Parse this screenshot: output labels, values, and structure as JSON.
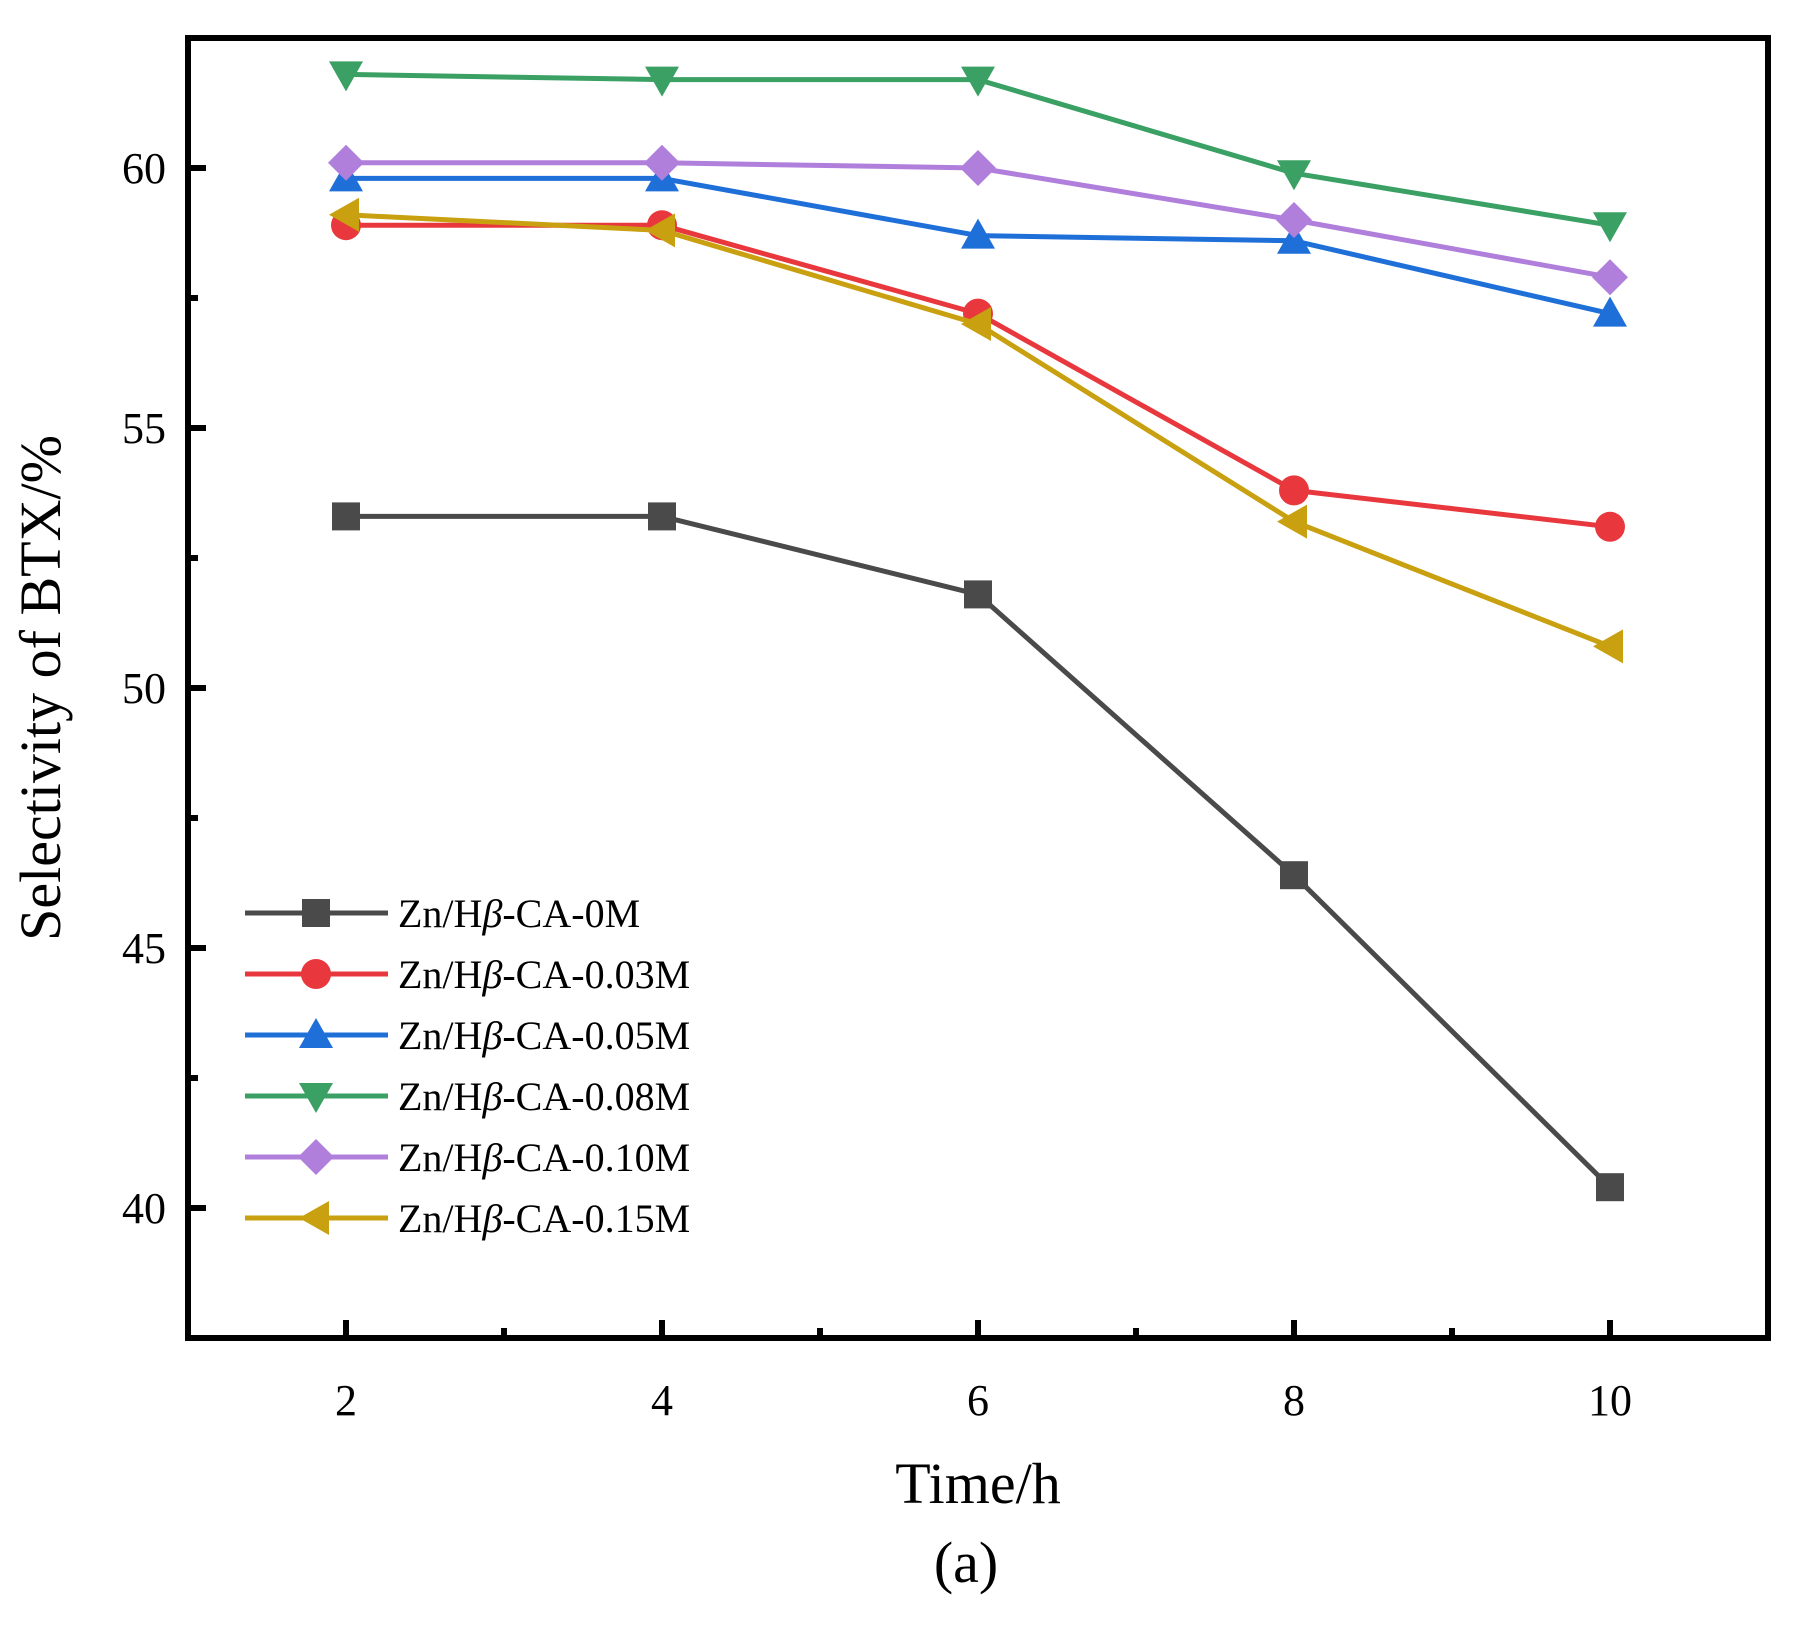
{
  "chart_data": {
    "type": "line",
    "title": "",
    "xlabel": "Time/h",
    "ylabel": "Selectivity of BTX/%",
    "caption": "(a)",
    "x": [
      2,
      4,
      6,
      8,
      10
    ],
    "xlim": [
      1,
      11
    ],
    "ylim": [
      37.5,
      62.5
    ],
    "xticks": [
      2,
      4,
      6,
      8,
      10
    ],
    "yticks": [
      40,
      45,
      50,
      55,
      60
    ],
    "grid": false,
    "legend_position": "lower-left",
    "series": [
      {
        "name": "Zn/Hβ-CA-0M",
        "label_prefix": "Zn/H",
        "label_symbol": "β",
        "label_suffix": "-CA-0M",
        "color": "#4a4a4a",
        "marker": "square",
        "values": [
          53.3,
          53.3,
          51.8,
          46.4,
          40.4
        ]
      },
      {
        "name": "Zn/Hβ-CA-0.03M",
        "label_prefix": "Zn/H",
        "label_symbol": "β",
        "label_suffix": "-CA-0.03M",
        "color": "#e8383d",
        "marker": "circle",
        "values": [
          58.9,
          58.9,
          57.2,
          53.8,
          53.1
        ]
      },
      {
        "name": "Zn/Hβ-CA-0.05M",
        "label_prefix": "Zn/H",
        "label_symbol": "β",
        "label_suffix": "-CA-0.05M",
        "color": "#1f6fd8",
        "marker": "triangle-up",
        "values": [
          59.8,
          59.8,
          58.7,
          58.6,
          57.2
        ]
      },
      {
        "name": "Zn/Hβ-CA-0.08M",
        "label_prefix": "Zn/H",
        "label_symbol": "β",
        "label_suffix": "-CA-0.08M",
        "color": "#3aa064",
        "marker": "triangle-down",
        "values": [
          61.8,
          61.7,
          61.7,
          59.9,
          58.9
        ]
      },
      {
        "name": "Zn/Hβ-CA-0.10M",
        "label_prefix": "Zn/H",
        "label_symbol": "β",
        "label_suffix": "-CA-0.10M",
        "color": "#b07fdc",
        "marker": "diamond",
        "values": [
          60.1,
          60.1,
          60.0,
          59.0,
          57.9
        ]
      },
      {
        "name": "Zn/Hβ-CA-0.15M",
        "label_prefix": "Zn/H",
        "label_symbol": "β",
        "label_suffix": "-CA-0.15M",
        "color": "#c9a00f",
        "marker": "triangle-left",
        "values": [
          59.1,
          58.8,
          57.0,
          53.2,
          50.8
        ]
      }
    ]
  }
}
